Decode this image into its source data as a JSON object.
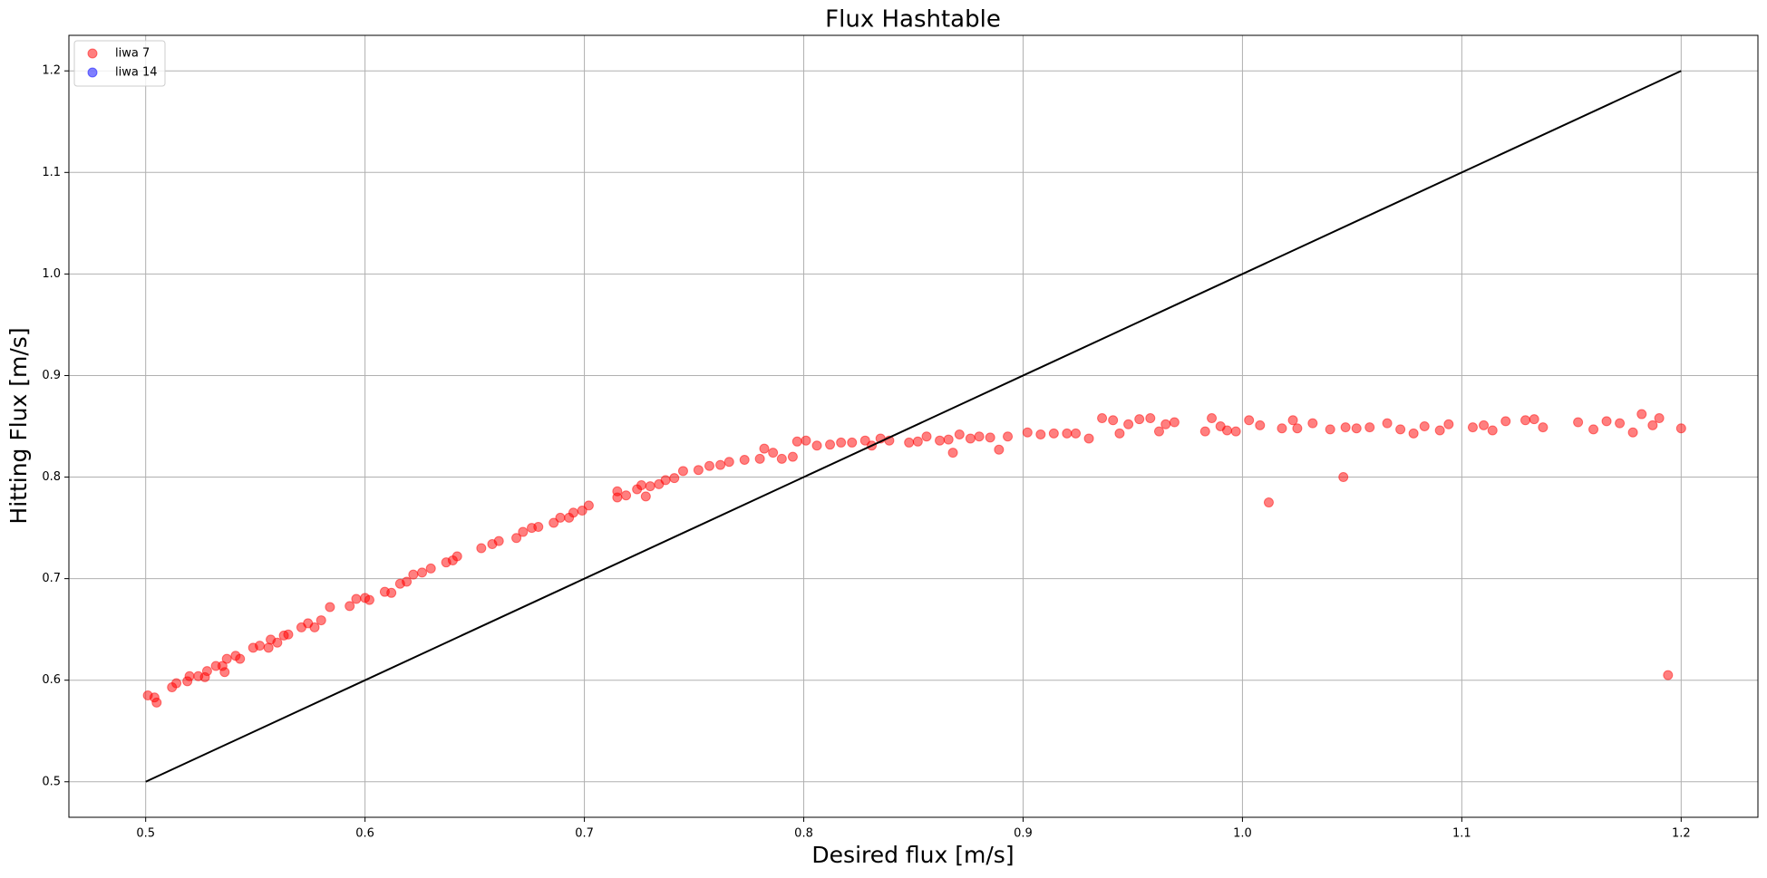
{
  "chart_data": {
    "type": "scatter",
    "title": "Flux Hashtable",
    "x_label": "Desired flux [m/s]",
    "y_label": "Hitting Flux [m/s]",
    "xlim": [
      0.465,
      1.235
    ],
    "ylim": [
      0.465,
      1.235
    ],
    "xticks": [
      0.5,
      0.6,
      0.7,
      0.8,
      0.9,
      {
        "value": 1,
        "label": "1.0"
      },
      1.1,
      1.2
    ],
    "yticks": [
      0.5,
      0.6,
      0.7,
      0.8,
      0.9,
      {
        "value": 1,
        "label": "1.0"
      },
      1.1,
      1.2
    ],
    "grid": true,
    "legend": "upper left",
    "series": [
      {
        "name": "liwa 7",
        "color": "#ff0000",
        "x": [
          0.501,
          0.504,
          0.505,
          0.512,
          0.514,
          0.519,
          0.52,
          0.524,
          0.527,
          0.528,
          0.532,
          0.535,
          0.536,
          0.537,
          0.541,
          0.543,
          0.549,
          0.552,
          0.556,
          0.557,
          0.56,
          0.563,
          0.565,
          0.571,
          0.574,
          0.577,
          0.58,
          0.584,
          0.593,
          0.596,
          0.6,
          0.602,
          0.609,
          0.612,
          0.616,
          0.619,
          0.622,
          0.626,
          0.63,
          0.637,
          0.64,
          0.642,
          0.653,
          0.658,
          0.661,
          0.669,
          0.672,
          0.676,
          0.679,
          0.686,
          0.689,
          0.693,
          0.695,
          0.699,
          0.702,
          0.715,
          0.715,
          0.719,
          0.724,
          0.726,
          0.728,
          0.73,
          0.734,
          0.737,
          0.741,
          0.745,
          0.752,
          0.757,
          0.762,
          0.766,
          0.773,
          0.78,
          0.782,
          0.786,
          0.79,
          0.795,
          0.797,
          0.801,
          0.806,
          0.812,
          0.817,
          0.822,
          0.828,
          0.831,
          0.835,
          0.839,
          0.848,
          0.852,
          0.856,
          0.862,
          0.866,
          0.868,
          0.871,
          0.876,
          0.88,
          0.885,
          0.889,
          0.893,
          0.902,
          0.908,
          0.914,
          0.92,
          0.924,
          0.93,
          0.936,
          0.941,
          0.944,
          0.948,
          0.953,
          0.958,
          0.962,
          0.965,
          0.969,
          0.983,
          0.986,
          0.99,
          0.993,
          0.997,
          1.003,
          1.008,
          1.012,
          1.018,
          1.023,
          1.025,
          1.032,
          1.04,
          1.046,
          1.047,
          1.052,
          1.058,
          1.066,
          1.072,
          1.078,
          1.083,
          1.09,
          1.094,
          1.105,
          1.11,
          1.114,
          1.12,
          1.129,
          1.133,
          1.137,
          1.153,
          1.16,
          1.166,
          1.172,
          1.178,
          1.182,
          1.187,
          1.19,
          1.194,
          1.2
        ],
        "values": [
          0.585,
          0.583,
          0.578,
          0.593,
          0.597,
          0.599,
          0.604,
          0.604,
          0.603,
          0.609,
          0.614,
          0.614,
          0.608,
          0.621,
          0.624,
          0.621,
          0.632,
          0.634,
          0.632,
          0.64,
          0.637,
          0.644,
          0.645,
          0.652,
          0.656,
          0.652,
          0.659,
          0.672,
          0.673,
          0.68,
          0.681,
          0.679,
          0.687,
          0.686,
          0.695,
          0.697,
          0.704,
          0.706,
          0.71,
          0.716,
          0.718,
          0.722,
          0.73,
          0.734,
          0.737,
          0.74,
          0.746,
          0.75,
          0.751,
          0.755,
          0.76,
          0.76,
          0.765,
          0.767,
          0.772,
          0.78,
          0.786,
          0.782,
          0.788,
          0.792,
          0.781,
          0.791,
          0.793,
          0.797,
          0.799,
          0.806,
          0.807,
          0.811,
          0.812,
          0.815,
          0.817,
          0.818,
          0.828,
          0.824,
          0.818,
          0.82,
          0.835,
          0.836,
          0.831,
          0.832,
          0.834,
          0.834,
          0.836,
          0.831,
          0.838,
          0.836,
          0.834,
          0.835,
          0.84,
          0.836,
          0.837,
          0.824,
          0.842,
          0.838,
          0.84,
          0.839,
          0.827,
          0.84,
          0.844,
          0.842,
          0.843,
          0.843,
          0.843,
          0.838,
          0.858,
          0.856,
          0.843,
          0.852,
          0.857,
          0.858,
          0.845,
          0.852,
          0.854,
          0.845,
          0.858,
          0.85,
          0.846,
          0.845,
          0.856,
          0.851,
          0.775,
          0.848,
          0.856,
          0.848,
          0.853,
          0.847,
          0.8,
          0.849,
          0.848,
          0.849,
          0.853,
          0.847,
          0.843,
          0.85,
          0.846,
          0.852,
          0.849,
          0.851,
          0.846,
          0.855,
          0.856,
          0.857,
          0.849,
          0.854,
          0.847,
          0.855,
          0.853,
          0.844,
          0.862,
          0.851,
          0.858,
          0.605,
          0.848
        ]
      },
      {
        "name": "liwa 14",
        "color": "#0000ff",
        "x": [],
        "values": []
      }
    ],
    "reference_line": {
      "color": "#000000",
      "x": [
        0.5,
        1.2
      ],
      "values": [
        0.5,
        1.2
      ]
    }
  }
}
